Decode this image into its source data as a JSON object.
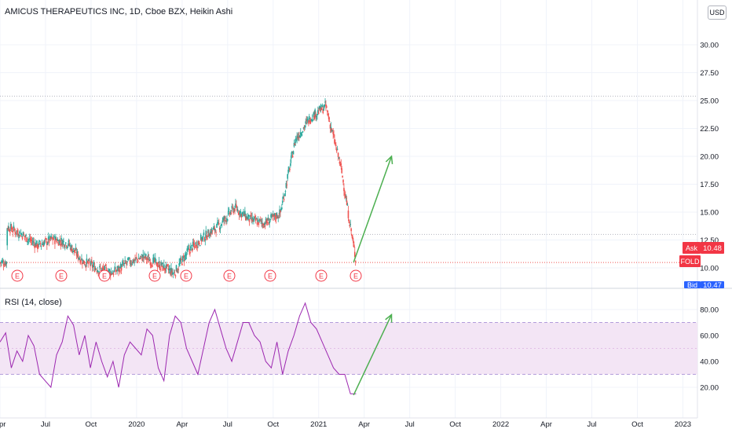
{
  "header": {
    "title": "AMICUS THERAPEUTICS INC, 1D, Cboe BZX, Heikin Ashi",
    "currency_button": "USD"
  },
  "rsi": {
    "title": "RSI (14, close)"
  },
  "price_badges": {
    "ask_label": "Ask",
    "ask_value": "10.48",
    "symbol": "FOLD",
    "bid_label": "Bid",
    "bid_value": "10.47"
  },
  "colors": {
    "up": "#26a69a",
    "down": "#ef5350",
    "rsi_line": "#9c27b0",
    "rsi_band": "#f3e5f5",
    "arrow": "#4caf50",
    "ask_badge": "#f23645",
    "bid_badge": "#2962ff"
  },
  "chart_data": [
    {
      "type": "candlestick",
      "title": "AMICUS THERAPEUTICS INC, 1D, Cboe BZX, Heikin Ashi",
      "x_ticks": [
        "Apr",
        "Jul",
        "Oct",
        "2020",
        "Apr",
        "Jul",
        "Oct",
        "2021",
        "Apr",
        "Jul",
        "Oct",
        "2022",
        "Apr",
        "Jul",
        "Oct",
        "2023"
      ],
      "y_ticks": [
        "10.00",
        "12.50",
        "15.00",
        "17.50",
        "20.00",
        "22.50",
        "25.00",
        "27.50",
        "30.00"
      ],
      "ylim": [
        9.5,
        32.0
      ],
      "price_path": [
        {
          "x": "2019-04",
          "y": 13.7
        },
        {
          "x": "2019-05",
          "y": 13.0
        },
        {
          "x": "2019-06",
          "y": 12.0
        },
        {
          "x": "2019-07",
          "y": 12.6
        },
        {
          "x": "2019-08",
          "y": 12.2
        },
        {
          "x": "2019-09",
          "y": 10.6
        },
        {
          "x": "2019-10",
          "y": 9.9
        },
        {
          "x": "2019-11",
          "y": 9.6
        },
        {
          "x": "2019-12",
          "y": 10.5
        },
        {
          "x": "2020-01",
          "y": 11.0
        },
        {
          "x": "2020-02",
          "y": 10.3
        },
        {
          "x": "2020-03",
          "y": 9.5
        },
        {
          "x": "2020-04",
          "y": 11.6
        },
        {
          "x": "2020-05",
          "y": 12.8
        },
        {
          "x": "2020-06",
          "y": 13.8
        },
        {
          "x": "2020-07",
          "y": 15.4
        },
        {
          "x": "2020-08",
          "y": 14.3
        },
        {
          "x": "2020-09",
          "y": 14.0
        },
        {
          "x": "2020-10",
          "y": 14.9
        },
        {
          "x": "2020-11",
          "y": 21.5
        },
        {
          "x": "2020-12",
          "y": 23.5
        },
        {
          "x": "2021-01",
          "y": 24.5
        },
        {
          "x": "2021-02",
          "y": 19.0
        },
        {
          "x": "2021-03",
          "y": 10.5
        }
      ],
      "levels": [
        25.4,
        13.0,
        10.48
      ],
      "earnings_markers": [
        "E",
        "E",
        "E",
        "E",
        "E",
        "E",
        "E",
        "E",
        "E"
      ],
      "arrow": {
        "from": {
          "x": "2021-03-10",
          "y": 10.5
        },
        "to": {
          "x": "2021-05-25",
          "y": 20.0
        }
      }
    },
    {
      "type": "line",
      "title": "RSI (14, close)",
      "y_ticks": [
        "20.00",
        "40.00",
        "60.00",
        "80.00"
      ],
      "ylim": [
        10,
        90
      ],
      "bands": [
        30,
        70
      ],
      "series": [
        {
          "values": [
            55,
            62,
            35,
            48,
            40,
            60,
            52,
            30,
            25,
            20,
            45,
            55,
            75,
            68,
            45,
            60,
            35,
            55,
            40,
            28,
            40,
            20,
            45,
            55,
            50,
            45,
            65,
            60,
            35,
            25,
            60,
            75,
            70,
            50,
            40,
            30,
            50,
            70,
            80,
            65,
            50,
            40,
            55,
            70,
            70,
            60,
            55,
            40,
            35,
            55,
            30,
            48,
            60,
            75,
            85,
            70,
            65,
            55,
            45,
            35,
            30,
            30,
            15,
            15
          ]
        }
      ],
      "arrow": {
        "from": {
          "x": "2021-03-10",
          "y": 14
        },
        "to": {
          "x": "2021-05-25",
          "y": 76
        }
      }
    }
  ]
}
